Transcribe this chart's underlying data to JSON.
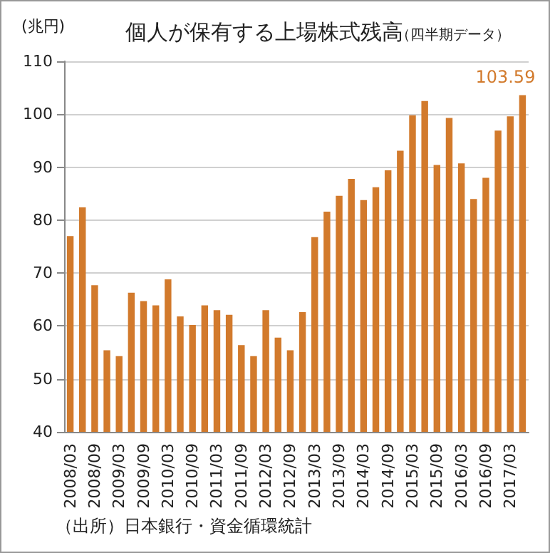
{
  "chart_data": {
    "type": "bar",
    "title": "個人が保有する上場株式残高",
    "subtitle": "（四半期データ）",
    "ylabel": "(兆円)",
    "categories": [
      "2008/03",
      null,
      "2008/09",
      null,
      "2009/03",
      null,
      "2009/09",
      null,
      "2010/03",
      null,
      "2010/09",
      null,
      "2011/03",
      null,
      "2011/09",
      null,
      "2012/03",
      null,
      "2012/09",
      null,
      "2013/03",
      null,
      "2013/09",
      null,
      "2014/03",
      null,
      "2014/09",
      null,
      "2015/03",
      null,
      "2015/09",
      null,
      "2016/03",
      null,
      "2016/09",
      null,
      "2017/03",
      null
    ],
    "series": [
      {
        "color": "#d27a2c",
        "values": [
          77.0,
          82.4,
          67.7,
          55.4,
          54.3,
          66.3,
          64.7,
          63.9,
          68.8,
          61.8,
          60.2,
          63.9,
          63.0,
          62.1,
          56.4,
          54.3,
          63.0,
          57.8,
          55.4,
          62.6,
          76.8,
          81.6,
          84.6,
          87.8,
          83.8,
          86.2,
          89.4,
          93.1,
          99.8,
          102.5,
          90.4,
          99.3,
          90.7,
          84.0,
          88.0,
          96.9,
          99.6,
          103.59
        ],
        "value_labels": [
          null,
          null,
          null,
          null,
          null,
          null,
          null,
          null,
          null,
          null,
          null,
          null,
          null,
          null,
          null,
          null,
          null,
          null,
          null,
          null,
          null,
          null,
          null,
          null,
          null,
          null,
          null,
          null,
          null,
          null,
          null,
          null,
          null,
          null,
          null,
          null,
          null,
          "103.59"
        ]
      }
    ],
    "ylim": [
      40,
      110
    ],
    "yticks": [
      40,
      50,
      60,
      70,
      80,
      90,
      100,
      110
    ],
    "grid": "y",
    "annotations": [
      "（出所）日本銀行・資金循環統計"
    ]
  }
}
